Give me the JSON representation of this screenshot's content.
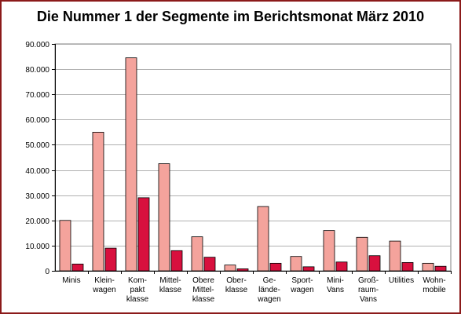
{
  "chart_data": {
    "type": "bar",
    "title": "Die Nummer 1 der Segmente im Berichtsmonat März 2010",
    "xlabel": "",
    "ylabel": "",
    "ylim": [
      0,
      90000
    ],
    "y_ticks": [
      "0",
      "10.000",
      "20.000",
      "30.000",
      "40.000",
      "50.000",
      "60.000",
      "70.000",
      "80.000",
      "90.000"
    ],
    "categories": [
      [
        "Minis"
      ],
      [
        "Klein-",
        "wagen"
      ],
      [
        "Kom-",
        "pakt",
        "klasse"
      ],
      [
        "Mittel-",
        "klasse"
      ],
      [
        "Obere",
        "Mittel-",
        "klasse"
      ],
      [
        "Ober-",
        "klasse"
      ],
      [
        "Ge-",
        "lände-",
        "wagen"
      ],
      [
        "Sport-",
        "wagen"
      ],
      [
        "Mini-",
        "Vans"
      ],
      [
        "Groß-",
        "raum-",
        "Vans"
      ],
      [
        "Utilities"
      ],
      [
        "Wohn-",
        "mobile"
      ]
    ],
    "series": [
      {
        "values": [
          20000,
          55000,
          84500,
          42500,
          13500,
          2300,
          25500,
          5700,
          16000,
          13300,
          11800,
          3000
        ]
      },
      {
        "values": [
          2700,
          9000,
          29000,
          8000,
          5400,
          800,
          3000,
          1600,
          3500,
          6000,
          3300,
          1800
        ]
      }
    ],
    "colors": [
      "#f4a39c",
      "#d8103e"
    ],
    "grid": true,
    "legend": "none"
  }
}
